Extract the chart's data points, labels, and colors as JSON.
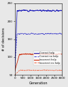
{
  "xlabel": "Generation",
  "ylabel": "# of decisions",
  "xlim": [
    0,
    3000
  ],
  "ylim": [
    50,
    250
  ],
  "yticks": [
    50,
    100,
    150,
    200,
    250
  ],
  "xticks": [
    0,
    500,
    1000,
    1500,
    2000,
    2500,
    3000
  ],
  "xtick_labels": [
    "0",
    "500",
    "1000",
    "1500",
    "2000",
    "2500",
    "3000"
  ],
  "legend_labels": [
    "Correct help",
    "Correct no help",
    "Incorrect help",
    "Incorrect no help"
  ],
  "background_color": "#e8e8e8",
  "blue_solid": "#2222bb",
  "blue_dash": "#4444cc",
  "red_solid": "#cc2200",
  "red_dash": "#ee6644",
  "correct_help_plateau": 230,
  "correct_nohelp_plateau": 165,
  "incorrect_help_plateau": 108,
  "incorrect_nohelp_plateau": 63,
  "ramp_gen": 150
}
